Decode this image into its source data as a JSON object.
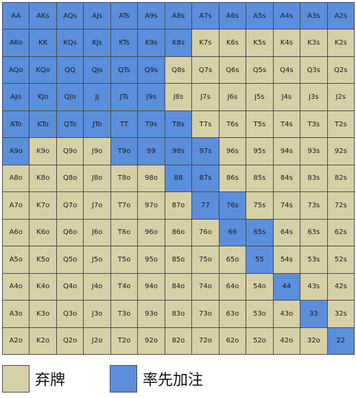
{
  "colors": {
    "fold": "#d6d0a6",
    "raise": "#5b8edb"
  },
  "legend": {
    "fold_label": "弃牌",
    "raise_label": "率先加注"
  },
  "rows": [
    [
      "AA",
      "AKs",
      "AQs",
      "AJs",
      "ATs",
      "A9s",
      "A8s",
      "A7s",
      "A6s",
      "A5s",
      "A4s",
      "A3s",
      "A2s"
    ],
    [
      "AKo",
      "KK",
      "KQs",
      "KJs",
      "KTs",
      "K9s",
      "K8s",
      "K7s",
      "K6s",
      "K5s",
      "K4s",
      "K3s",
      "K2s"
    ],
    [
      "AQo",
      "KQo",
      "QQ",
      "QJs",
      "QTs",
      "Q9s",
      "Q8s",
      "Q7s",
      "Q6s",
      "Q5s",
      "Q4s",
      "Q3s",
      "Q2s"
    ],
    [
      "AJo",
      "KJo",
      "QJo",
      "JJ",
      "JTs",
      "J9s",
      "J8s",
      "J7s",
      "J6s",
      "J5s",
      "J4s",
      "J3s",
      "J2s"
    ],
    [
      "ATo",
      "KTo",
      "QTo",
      "JTo",
      "TT",
      "T9s",
      "T8s",
      "T7s",
      "T6s",
      "T5s",
      "T4s",
      "T3s",
      "T2s"
    ],
    [
      "A9o",
      "K9o",
      "Q9o",
      "J9o",
      "T9o",
      "99",
      "98s",
      "97s",
      "96s",
      "95s",
      "94s",
      "93s",
      "92s"
    ],
    [
      "A8o",
      "K8o",
      "Q8o",
      "J8o",
      "T8o",
      "98o",
      "88",
      "87s",
      "86s",
      "85s",
      "84s",
      "83s",
      "82s"
    ],
    [
      "A7o",
      "K7o",
      "Q7o",
      "J7o",
      "T7o",
      "97o",
      "87o",
      "77",
      "76s",
      "75s",
      "74s",
      "73s",
      "72s"
    ],
    [
      "A6o",
      "K6o",
      "Q6o",
      "J6o",
      "T6o",
      "96o",
      "86o",
      "76o",
      "66",
      "65s",
      "64s",
      "63s",
      "62s"
    ],
    [
      "A5o",
      "K5o",
      "Q5o",
      "J5o",
      "T5o",
      "95o",
      "85o",
      "75o",
      "65o",
      "55",
      "54s",
      "53s",
      "52s"
    ],
    [
      "A4o",
      "K4o",
      "Q4o",
      "J4o",
      "T4o",
      "94o",
      "84o",
      "74o",
      "64o",
      "54o",
      "44",
      "43s",
      "42s"
    ],
    [
      "A3o",
      "K3o",
      "Q3o",
      "J3o",
      "T3o",
      "93o",
      "83o",
      "73o",
      "63o",
      "53o",
      "43o",
      "33",
      "32s"
    ],
    [
      "A2o",
      "K2o",
      "Q2o",
      "J2o",
      "T2o",
      "92o",
      "82o",
      "72o",
      "62o",
      "52o",
      "42o",
      "32o",
      "22"
    ]
  ],
  "actions": [
    "RRRRRRRRRRRRR",
    "RRRRRRRFFFFFF",
    "RRRRRRFFFFFFF",
    "RRRRRRFFFFFFF",
    "RRRRRRRFFFFFF",
    "RFFFRRRRFFFFF",
    "FFFFFFRRFFFFF",
    "FFFFFFFRRFFFF",
    "FFFFFFFFRRFFF",
    "FFFFFFFFFRFFF",
    "FFFFFFFFFFRFF",
    "FFFFFFFFFFFRF",
    "FFFFFFFFFFFFR"
  ]
}
